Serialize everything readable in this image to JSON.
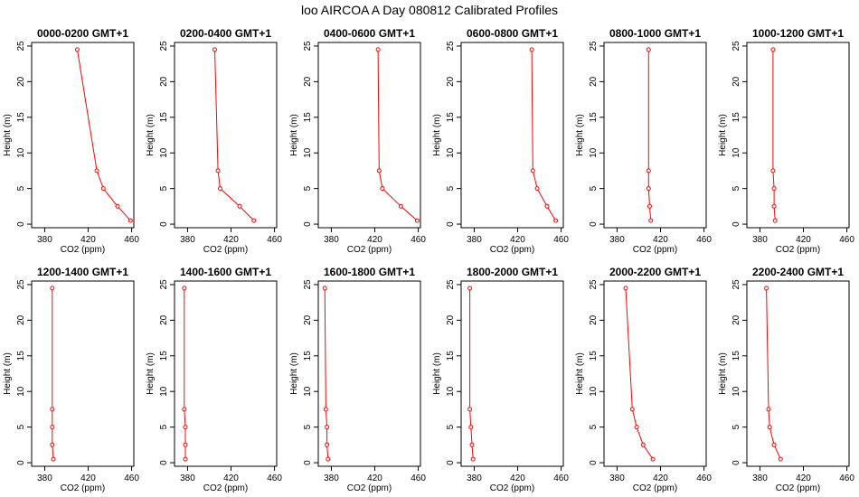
{
  "chart_data": {
    "title": "loo AIRCOA A  Day 080812  Calibrated Profiles",
    "type": "line",
    "xlabel": "CO2 (ppm)",
    "ylabel": "Height (m)",
    "xlim": [
      368,
      462
    ],
    "ylim": [
      -0.5,
      25.5
    ],
    "xticks": [
      380,
      420,
      460
    ],
    "xtick_labels": [
      "380",
      "420",
      "460"
    ],
    "yticks": [
      0,
      5,
      10,
      15,
      20,
      25
    ],
    "ytick_labels": [
      "0",
      "5",
      "10",
      "15",
      "20",
      "25"
    ],
    "series_color": "#ff0000",
    "heights": [
      0.5,
      2.5,
      5,
      7.5,
      24.5
    ],
    "panels": [
      {
        "title": "0000-0200 GMT+1",
        "co2": [
          459,
          447,
          434,
          428,
          410
        ]
      },
      {
        "title": "0200-0400 GMT+1",
        "co2": [
          441,
          428,
          410,
          408,
          405
        ]
      },
      {
        "title": "0400-0600 GMT+1",
        "co2": [
          459,
          444,
          427,
          424,
          423
        ]
      },
      {
        "title": "0600-0800 GMT+1",
        "co2": [
          455,
          447,
          438,
          434,
          433
        ]
      },
      {
        "title": "0800-1000 GMT+1",
        "co2": [
          411,
          410,
          409,
          409,
          409
        ]
      },
      {
        "title": "1000-1200 GMT+1",
        "co2": [
          394,
          393,
          393,
          392,
          392
        ]
      },
      {
        "title": "1200-1400 GMT+1",
        "co2": [
          388,
          387,
          387,
          387,
          387
        ]
      },
      {
        "title": "1400-1600 GMT+1",
        "co2": [
          378,
          378,
          378,
          377,
          377
        ]
      },
      {
        "title": "1600-1800 GMT+1",
        "co2": [
          377,
          376,
          376,
          375,
          374
        ]
      },
      {
        "title": "1800-2000 GMT+1",
        "co2": [
          379,
          378,
          377,
          376,
          376
        ]
      },
      {
        "title": "2000-2200 GMT+1",
        "co2": [
          413,
          404,
          398,
          394,
          388
        ]
      },
      {
        "title": "2200-2400 GMT+1",
        "co2": [
          399,
          393,
          389,
          388,
          386
        ]
      }
    ]
  }
}
